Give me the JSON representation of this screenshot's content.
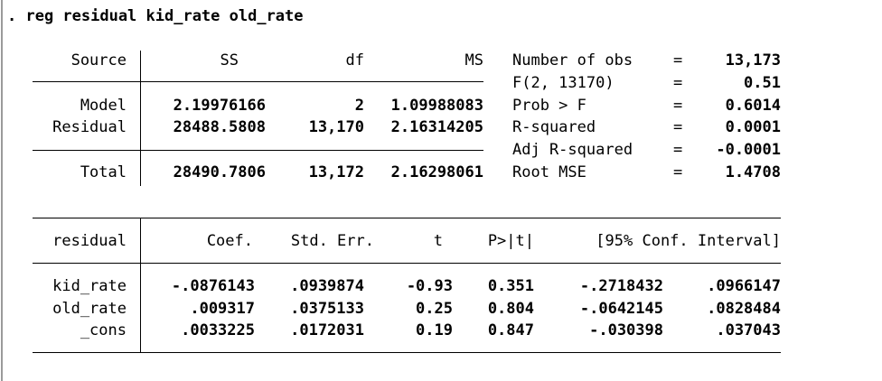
{
  "command": ". reg residual kid_rate old_rate",
  "anova": {
    "headers": {
      "source": "Source",
      "ss": "SS",
      "df": "df",
      "ms": "MS"
    },
    "rows": [
      {
        "source": "Model",
        "ss": "2.19976166",
        "df": "2",
        "ms": "1.09988083"
      },
      {
        "source": "Residual",
        "ss": "28488.5808",
        "df": "13,170",
        "ms": "2.16314205"
      }
    ],
    "total": {
      "source": "Total",
      "ss": "28490.7806",
      "df": "13,172",
      "ms": "2.16298061"
    }
  },
  "stats": [
    {
      "label": "Number of obs",
      "eq": "=",
      "value": "13,173"
    },
    {
      "label": "F(2, 13170)",
      "eq": "=",
      "value": "0.51"
    },
    {
      "label": "Prob > F",
      "eq": "=",
      "value": "0.6014"
    },
    {
      "label": "R-squared",
      "eq": "=",
      "value": "0.0001"
    },
    {
      "label": "Adj R-squared",
      "eq": "=",
      "value": "-0.0001"
    },
    {
      "label": "Root MSE",
      "eq": "=",
      "value": "1.4708"
    }
  ],
  "coef": {
    "headers": {
      "var": "residual",
      "coef": "Coef.",
      "se": "Std. Err.",
      "t": "t",
      "p": "P>|t|",
      "ci": "[95% Conf. Interval]"
    },
    "rows": [
      {
        "var": "kid_rate",
        "coef": "-.0876143",
        "se": ".0939874",
        "t": "-0.93",
        "p": "0.351",
        "lo": "-.2718432",
        "hi": ".0966147"
      },
      {
        "var": "old_rate",
        "coef": ".009317",
        "se": ".0375133",
        "t": "0.25",
        "p": "0.804",
        "lo": "-.0642145",
        "hi": ".0828484"
      },
      {
        "var": "_cons",
        "coef": ".0033225",
        "se": ".0172031",
        "t": "0.19",
        "p": "0.847",
        "lo": "-.030398",
        "hi": ".037043"
      }
    ]
  }
}
